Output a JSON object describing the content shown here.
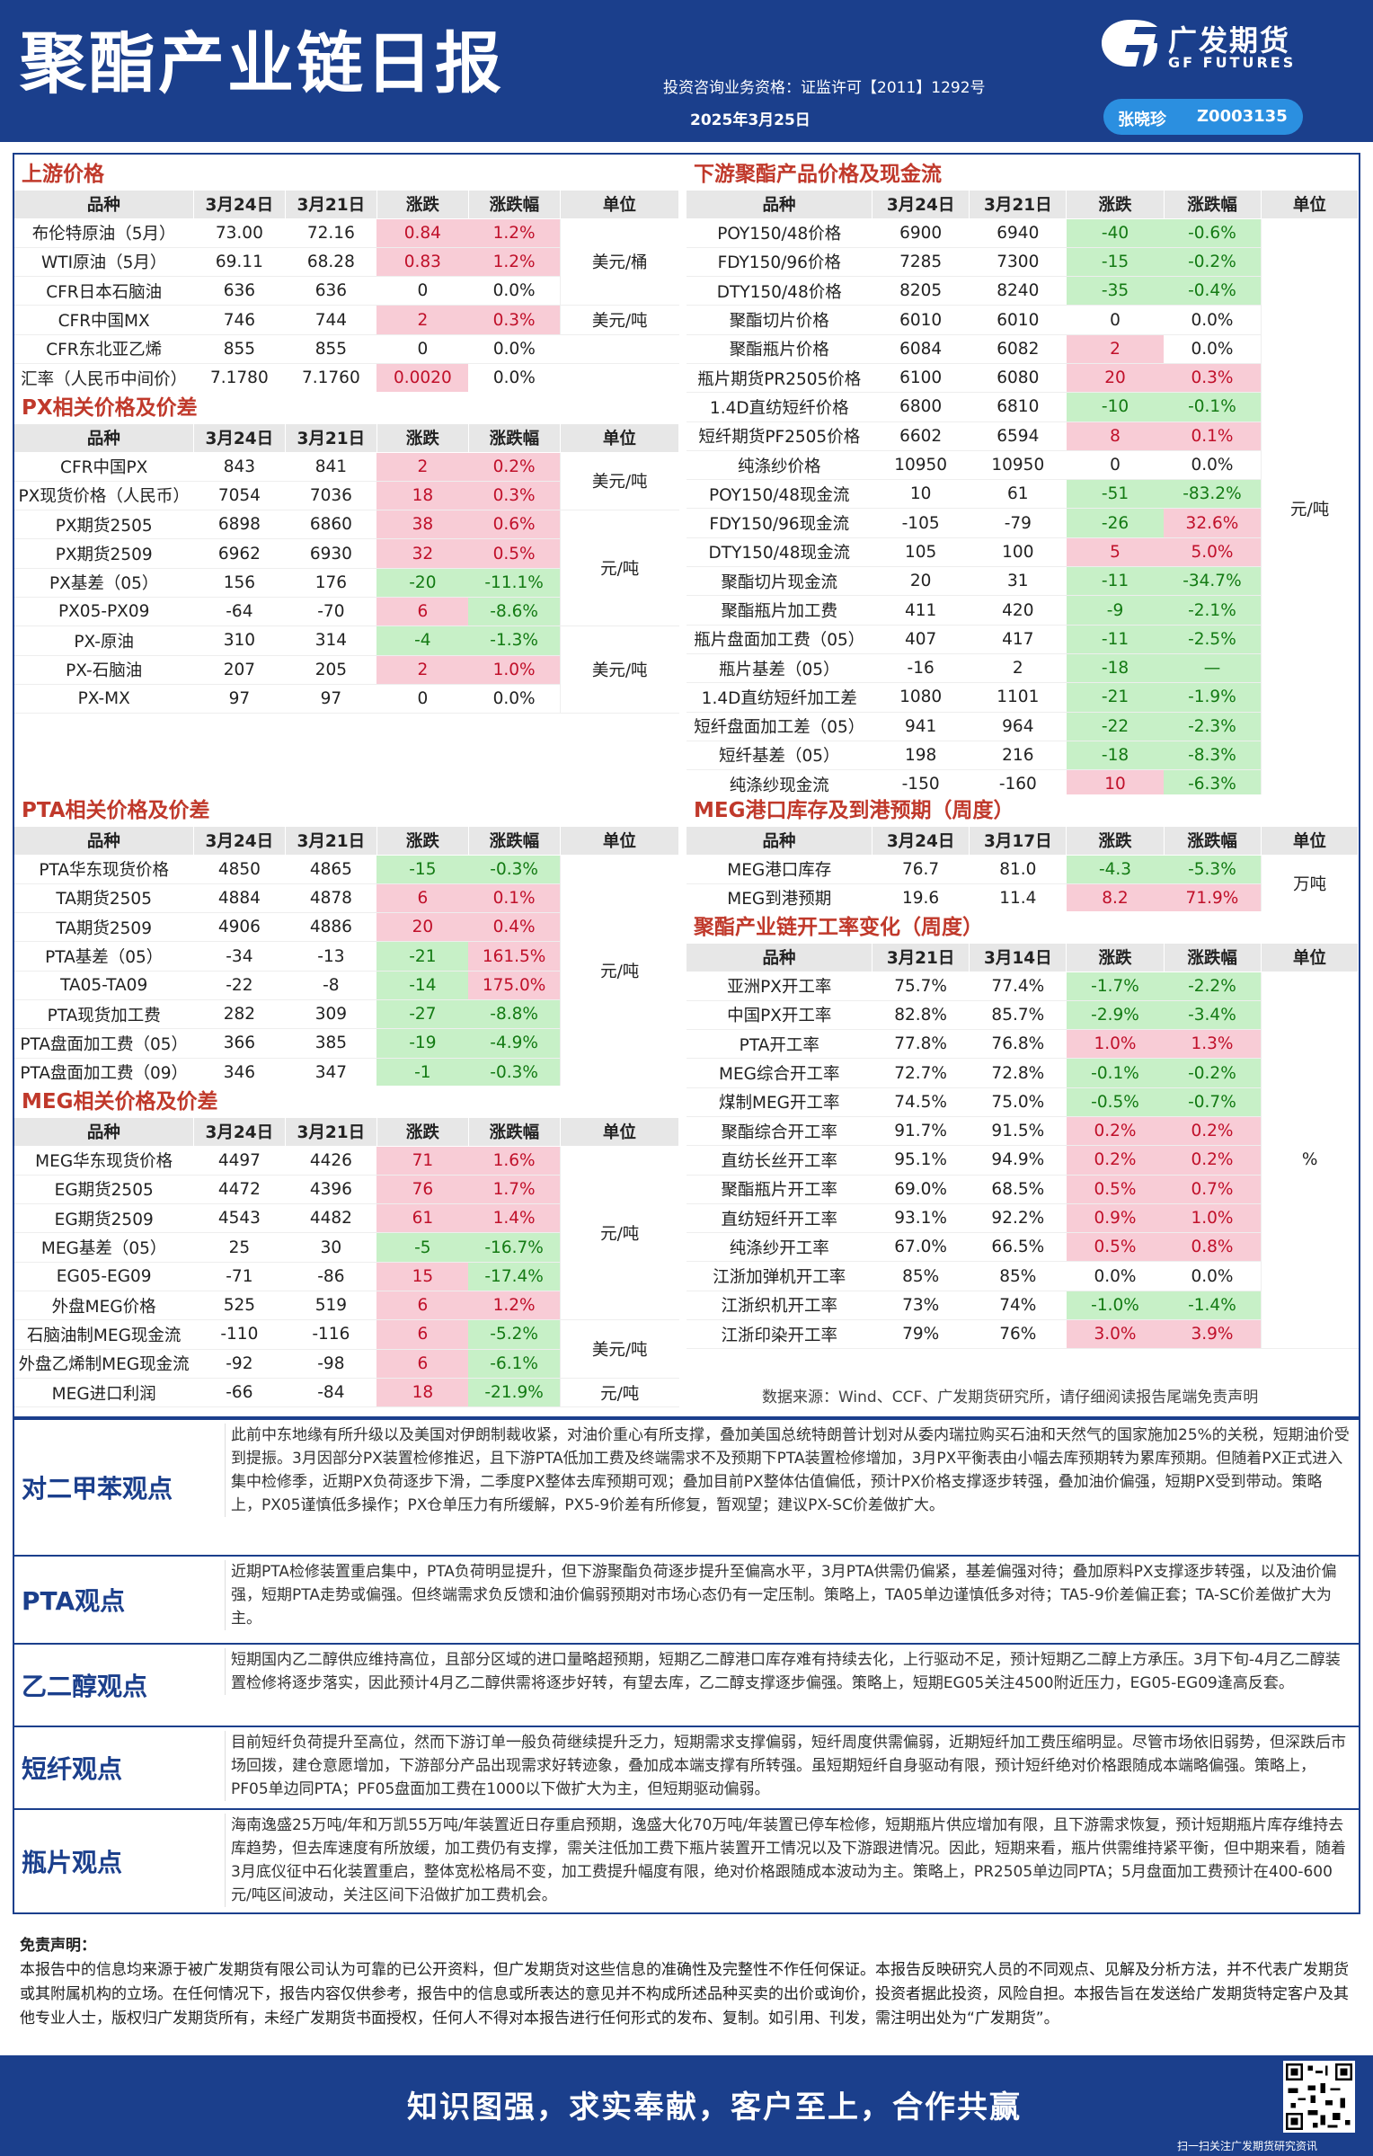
{
  "header": {
    "title": "聚酯产业链日报",
    "qualification": "投资咨询业务资格：证监许可【2011】1292号",
    "date": "2025年3月25日",
    "brand": "广发期货",
    "brand_en": "GF FUTURES",
    "author_name": "张晓珍",
    "author_id": "Z0003135"
  },
  "upstream": {
    "title": "上游价格",
    "headers": [
      "品种",
      "3月24日",
      "3月21日",
      "涨跌",
      "涨跌幅",
      "单位"
    ],
    "rows": [
      [
        "布伦特原油（5月）",
        "73.00",
        "72.16",
        "0.84",
        "1.2%"
      ],
      [
        "WTI原油（5月）",
        "69.11",
        "68.28",
        "0.83",
        "1.2%"
      ],
      [
        "CFR日本石脑油",
        "636",
        "636",
        "0",
        "0.0%"
      ],
      [
        "CFR中国MX",
        "746",
        "744",
        "2",
        "0.3%"
      ],
      [
        "CFR东北亚乙烯",
        "855",
        "855",
        "0",
        "0.0%"
      ],
      [
        "汇率（人民币中间价）",
        "7.1780",
        "7.1760",
        "0.0020",
        "0.0%"
      ]
    ],
    "units": [
      "美元/桶",
      "美元/吨"
    ]
  },
  "px": {
    "title": "PX相关价格及价差",
    "headers": [
      "品种",
      "3月24日",
      "3月21日",
      "涨跌",
      "涨跌幅",
      "单位"
    ],
    "rows": [
      [
        "CFR中国PX",
        "843",
        "841",
        "2",
        "0.2%"
      ],
      [
        "PX现货价格（人民币）",
        "7054",
        "7036",
        "18",
        "0.3%"
      ],
      [
        "PX期货2505",
        "6898",
        "6860",
        "38",
        "0.6%"
      ],
      [
        "PX期货2509",
        "6962",
        "6930",
        "32",
        "0.5%"
      ],
      [
        "PX基差（05）",
        "156",
        "176",
        "-20",
        "-11.1%"
      ],
      [
        "PX05-PX09",
        "-64",
        "-70",
        "6",
        "-8.6%"
      ],
      [
        "PX-原油",
        "310",
        "314",
        "-4",
        "-1.3%"
      ],
      [
        "PX-石脑油",
        "207",
        "205",
        "2",
        "1.0%"
      ],
      [
        "PX-MX",
        "97",
        "97",
        "0",
        "0.0%"
      ]
    ],
    "units": [
      "美元/吨",
      "元/吨",
      "美元/吨"
    ]
  },
  "pta": {
    "title": "PTA相关价格及价差",
    "headers": [
      "品种",
      "3月24日",
      "3月21日",
      "涨跌",
      "涨跌幅",
      "单位"
    ],
    "rows": [
      [
        "PTA华东现货价格",
        "4850",
        "4865",
        "-15",
        "-0.3%"
      ],
      [
        "TA期货2505",
        "4884",
        "4878",
        "6",
        "0.1%"
      ],
      [
        "TA期货2509",
        "4906",
        "4886",
        "20",
        "0.4%"
      ],
      [
        "PTA基差（05）",
        "-34",
        "-13",
        "-21",
        "161.5%"
      ],
      [
        "TA05-TA09",
        "-22",
        "-8",
        "-14",
        "175.0%"
      ],
      [
        "PTA现货加工费",
        "282",
        "309",
        "-27",
        "-8.8%"
      ],
      [
        "PTA盘面加工费（05）",
        "366",
        "385",
        "-19",
        "-4.9%"
      ],
      [
        "PTA盘面加工费（09）",
        "346",
        "347",
        "-1",
        "-0.3%"
      ]
    ],
    "units": [
      "元/吨"
    ]
  },
  "meg": {
    "title": "MEG相关价格及价差",
    "headers": [
      "品种",
      "3月24日",
      "3月21日",
      "涨跌",
      "涨跌幅",
      "单位"
    ],
    "rows": [
      [
        "MEG华东现货价格",
        "4497",
        "4426",
        "71",
        "1.6%"
      ],
      [
        "EG期货2505",
        "4472",
        "4396",
        "76",
        "1.7%"
      ],
      [
        "EG期货2509",
        "4543",
        "4482",
        "61",
        "1.4%"
      ],
      [
        "MEG基差（05）",
        "25",
        "30",
        "-5",
        "-16.7%"
      ],
      [
        "EG05-EG09",
        "-71",
        "-86",
        "15",
        "-17.4%"
      ],
      [
        "外盘MEG价格",
        "525",
        "519",
        "6",
        "1.2%"
      ],
      [
        "石脑油制MEG现金流",
        "-110",
        "-116",
        "6",
        "-5.2%"
      ],
      [
        "外盘乙烯制MEG现金流",
        "-92",
        "-98",
        "6",
        "-6.1%"
      ],
      [
        "MEG进口利润",
        "-66",
        "-84",
        "18",
        "-21.9%"
      ]
    ],
    "units": [
      "元/吨",
      "美元/吨",
      "元/吨"
    ]
  },
  "downstream": {
    "title": "下游聚酯产品价格及现金流",
    "headers": [
      "品种",
      "3月24日",
      "3月21日",
      "涨跌",
      "涨跌幅",
      "单位"
    ],
    "rows": [
      [
        "POY150/48价格",
        "6900",
        "6940",
        "-40",
        "-0.6%"
      ],
      [
        "FDY150/96价格",
        "7285",
        "7300",
        "-15",
        "-0.2%"
      ],
      [
        "DTY150/48价格",
        "8205",
        "8240",
        "-35",
        "-0.4%"
      ],
      [
        "聚酯切片价格",
        "6010",
        "6010",
        "0",
        "0.0%"
      ],
      [
        "聚酯瓶片价格",
        "6084",
        "6082",
        "2",
        "0.0%"
      ],
      [
        "瓶片期货PR2505价格",
        "6100",
        "6080",
        "20",
        "0.3%"
      ],
      [
        "1.4D直纺短纤价格",
        "6800",
        "6810",
        "-10",
        "-0.1%"
      ],
      [
        "短纤期货PF2505价格",
        "6602",
        "6594",
        "8",
        "0.1%"
      ],
      [
        "纯涤纱价格",
        "10950",
        "10950",
        "0",
        "0.0%"
      ],
      [
        "POY150/48现金流",
        "10",
        "61",
        "-51",
        "-83.2%"
      ],
      [
        "FDY150/96现金流",
        "-105",
        "-79",
        "-26",
        "32.6%"
      ],
      [
        "DTY150/48现金流",
        "105",
        "100",
        "5",
        "5.0%"
      ],
      [
        "聚酯切片现金流",
        "20",
        "31",
        "-11",
        "-34.7%"
      ],
      [
        "聚酯瓶片加工费",
        "411",
        "420",
        "-9",
        "-2.1%"
      ],
      [
        "瓶片盘面加工费（05）",
        "407",
        "417",
        "-11",
        "-2.5%"
      ],
      [
        "瓶片基差（05）",
        "-16",
        "2",
        "-18",
        "—"
      ],
      [
        "1.4D直纺短纤加工差",
        "1080",
        "1101",
        "-21",
        "-1.9%"
      ],
      [
        "短纤盘面加工差（05）",
        "941",
        "964",
        "-22",
        "-2.3%"
      ],
      [
        "短纤基差（05）",
        "198",
        "216",
        "-18",
        "-8.3%"
      ],
      [
        "纯涤纱现金流",
        "-150",
        "-160",
        "10",
        "-6.3%"
      ]
    ],
    "units": [
      "元/吨"
    ]
  },
  "meg_inventory": {
    "title": "MEG港口库存及到港预期（周度）",
    "headers": [
      "品种",
      "3月24日",
      "3月17日",
      "涨跌",
      "涨跌幅",
      "单位"
    ],
    "rows": [
      [
        "MEG港口库存",
        "76.7",
        "81.0",
        "-4.3",
        "-5.3%"
      ],
      [
        "MEG到港预期",
        "19.6",
        "11.4",
        "8.2",
        "71.9%"
      ]
    ],
    "units": [
      "万吨"
    ]
  },
  "operating": {
    "title": "聚酯产业链开工率变化（周度）",
    "headers": [
      "品种",
      "3月21日",
      "3月14日",
      "涨跌",
      "涨跌幅",
      "单位"
    ],
    "rows": [
      [
        "亚洲PX开工率",
        "75.7%",
        "77.4%",
        "-1.7%",
        "-2.2%"
      ],
      [
        "中国PX开工率",
        "82.8%",
        "85.7%",
        "-2.9%",
        "-3.4%"
      ],
      [
        "PTA开工率",
        "77.8%",
        "76.8%",
        "1.0%",
        "1.3%"
      ],
      [
        "MEG综合开工率",
        "72.7%",
        "72.8%",
        "-0.1%",
        "-0.2%"
      ],
      [
        "煤制MEG开工率",
        "74.5%",
        "75.0%",
        "-0.5%",
        "-0.7%"
      ],
      [
        "聚酯综合开工率",
        "91.7%",
        "91.5%",
        "0.2%",
        "0.2%"
      ],
      [
        "直纺长丝开工率",
        "95.1%",
        "94.9%",
        "0.2%",
        "0.2%"
      ],
      [
        "聚酯瓶片开工率",
        "69.0%",
        "68.5%",
        "0.5%",
        "0.7%"
      ],
      [
        "直纺短纤开工率",
        "93.1%",
        "92.2%",
        "0.9%",
        "1.0%"
      ],
      [
        "纯涤纱开工率",
        "67.0%",
        "66.5%",
        "0.5%",
        "0.8%"
      ],
      [
        "江浙加弹机开工率",
        "85%",
        "85%",
        "0.0%",
        "0.0%"
      ],
      [
        "江浙织机开工率",
        "73%",
        "74%",
        "-1.0%",
        "-1.4%"
      ],
      [
        "江浙印染开工率",
        "79%",
        "76%",
        "3.0%",
        "3.9%"
      ]
    ],
    "units": [
      "%"
    ]
  },
  "source": "数据来源：Wind、CCF、广发期货研究所，请仔细阅读报告尾端免责声明",
  "views": [
    {
      "label": "对二甲苯观点",
      "text": "此前中东地缘有所升级以及美国对伊朗制裁收紧，对油价重心有所支撑，叠加美国总统特朗普计划对从委内瑞拉购买石油和天然气的国家施加25%的关税，短期油价受到提振。3月因部分PX装置检修推迟，且下游PTA低加工费及终端需求不及预期下PTA装置检修增加，3月PX平衡表由小幅去库预期转为累库预期。但随着PX正式进入集中检修季，近期PX负荷逐步下滑，二季度PX整体去库预期可观；叠加目前PX整体估值偏低，预计PX价格支撑逐步转强，叠加油价偏强，短期PX受到带动。策略上，PX05谨慎低多操作；PX仓单压力有所缓解，PX5-9价差有所修复，暂观望；建议PX-SC价差做扩大。"
    },
    {
      "label": "PTA观点",
      "text": "近期PTA检修装置重启集中，PTA负荷明显提升，但下游聚酯负荷逐步提升至偏高水平，3月PTA供需仍偏紧，基差偏强对待；叠加原料PX支撑逐步转强，以及油价偏强，短期PTA走势或偏强。但终端需求负反馈和油价偏弱预期对市场心态仍有一定压制。策略上，TA05单边谨慎低多对待；TA5-9价差偏正套；TA-SC价差做扩大为主。"
    },
    {
      "label": "乙二醇观点",
      "text": "短期国内乙二醇供应维持高位，且部分区域的进口量略超预期，短期乙二醇港口库存难有持续去化，上行驱动不足，预计短期乙二醇上方承压。3月下旬-4月乙二醇装置检修将逐步落实，因此预计4月乙二醇供需将逐步好转，有望去库，乙二醇支撑逐步偏强。策略上，短期EG05关注4500附近压力，EG05-EG09逢高反套。"
    },
    {
      "label": "短纤观点",
      "text": "目前短纤负荷提升至高位，然而下游订单一般负荷继续提升乏力，短期需求支撑偏弱，短纤周度供需偏弱，近期短纤加工费压缩明显。尽管市场依旧弱势，但深跌后市场回拨，建仓意愿增加，下游部分产品出现需求好转迹象，叠加成本端支撑有所转强。虽短期短纤自身驱动有限，预计短纤绝对价格跟随成本端略偏强。策略上，PF05单边同PTA；PF05盘面加工费在1000以下做扩大为主，但短期驱动偏弱。"
    },
    {
      "label": "瓶片观点",
      "text": "海南逸盛25万吨/年和万凯55万吨/年装置近日存重启预期，逸盛大化70万吨/年装置已停车检修，短期瓶片供应增加有限，且下游需求恢复，预计短期瓶片库存维持去库趋势，但去库速度有所放缓，加工费仍有支撑，需关注低加工费下瓶片装置开工情况以及下游跟进情况。因此，短期来看，瓶片供需维持紧平衡，但中期来看，随着3月底仪征中石化装置重启，整体宽松格局不变，加工费提升幅度有限，绝对价格跟随成本波动为主。策略上，PR2505单边同PTA；5月盘面加工费预计在400-600元/吨区间波动，关注区间下沿做扩加工费机会。"
    }
  ],
  "disclaimer": {
    "title": "免责声明：",
    "text": "本报告中的信息均来源于被广发期货有限公司认为可靠的已公开资料，但广发期货对这些信息的准确性及完整性不作任何保证。本报告反映研究人员的不同观点、见解及分析方法，并不代表广发期货或其附属机构的立场。在任何情况下，报告内容仅供参考，报告中的信息或所表达的意见并不构成所述品种买卖的出价或询价，投资者据此投资，风险自担。本报告旨在发送给广发期货特定客户及其他专业人士，版权归广发期货所有，未经广发期货书面授权，任何人不得对本报告进行任何形式的发布、复制。如引用、刊发，需注明出处为“广发期货”。"
  },
  "footer": {
    "slogan": "知识图强，求实奉献，客户至上，合作共赢",
    "qr_caption": "扫一扫关注广发期货研究资讯"
  },
  "colors": {
    "brand_blue": "#1b3f8c",
    "up_bg": "#f8ccd6",
    "down_bg": "#c7f0c7",
    "section_title": "#c0392b"
  }
}
